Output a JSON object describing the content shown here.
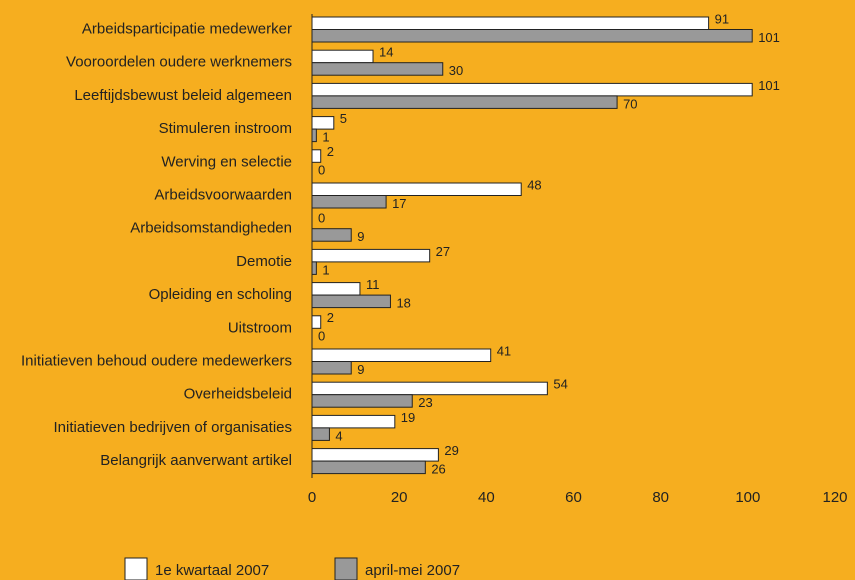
{
  "chart_data": {
    "type": "bar",
    "orientation": "horizontal",
    "categories": [
      "Arbeidsparticipatie medewerker",
      "Vooroordelen oudere werknemers",
      "Leeftijdsbewust beleid algemeen",
      "Stimuleren instroom",
      "Werving en selectie",
      "Arbeidsvoorwaarden",
      "Arbeidsomstandigheden",
      "Demotie",
      "Opleiding en scholing",
      "Uitstroom",
      "Initiatieven behoud oudere medewerkers",
      "Overheidsbeleid",
      "Initiatieven bedrijven of organisaties",
      "Belangrijk aanverwant artikel"
    ],
    "series": [
      {
        "name": "1e kwartaal 2007",
        "color": "#ffffff",
        "values": [
          91,
          14,
          101,
          5,
          2,
          48,
          0,
          27,
          11,
          2,
          41,
          54,
          19,
          29
        ]
      },
      {
        "name": "april-mei 2007",
        "color": "#999999",
        "values": [
          101,
          30,
          70,
          1,
          0,
          17,
          9,
          1,
          18,
          0,
          9,
          23,
          4,
          26
        ]
      }
    ],
    "xlim": [
      0,
      120
    ],
    "xticks": [
      0,
      20,
      40,
      60,
      80,
      100,
      120
    ],
    "legend": "bottom"
  }
}
